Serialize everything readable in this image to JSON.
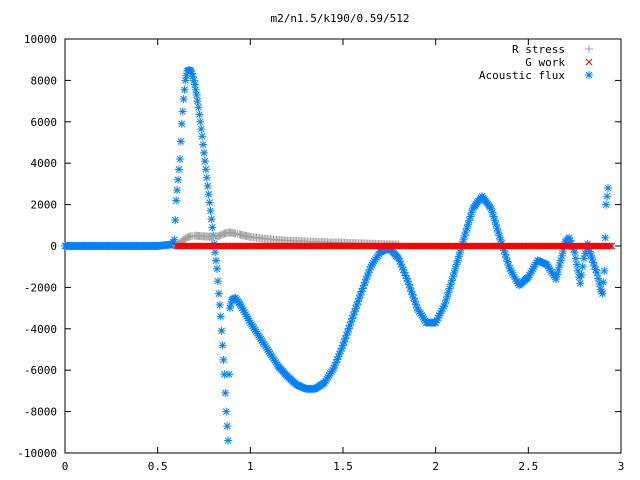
{
  "chart_data": {
    "type": "scatter",
    "title": "m2/n1.5/k190/0.59/512",
    "xlabel": "",
    "ylabel": "",
    "xlim": [
      0,
      3
    ],
    "ylim": [
      -10000,
      10000
    ],
    "x_ticks": [
      {
        "value": 0,
        "label": "0"
      },
      {
        "value": 0.5,
        "label": "0.5"
      },
      {
        "value": 1,
        "label": "1"
      },
      {
        "value": 1.5,
        "label": "1.5"
      },
      {
        "value": 2,
        "label": "2"
      },
      {
        "value": 2.5,
        "label": "2.5"
      },
      {
        "value": 3,
        "label": "3"
      }
    ],
    "y_ticks": [
      {
        "value": 10000,
        "label": "10000"
      },
      {
        "value": 8000,
        "label": "8000"
      },
      {
        "value": 6000,
        "label": "6000"
      },
      {
        "value": 4000,
        "label": "4000"
      },
      {
        "value": 2000,
        "label": "2000"
      },
      {
        "value": 0,
        "label": "0"
      },
      {
        "value": -2000,
        "label": "-2000"
      },
      {
        "value": -4000,
        "label": "-4000"
      },
      {
        "value": -6000,
        "label": "-6000"
      },
      {
        "value": -8000,
        "label": "-8000"
      },
      {
        "value": -10000,
        "label": "-10000"
      }
    ],
    "grid": false,
    "legend_position": "top-right",
    "series": [
      {
        "name": "R stress",
        "marker": "plus",
        "color": "#a0a0a0",
        "points": [
          [
            0.6,
            10
          ],
          [
            0.62,
            150
          ],
          [
            0.64,
            300
          ],
          [
            0.66,
            420
          ],
          [
            0.68,
            480
          ],
          [
            0.7,
            500
          ],
          [
            0.72,
            490
          ],
          [
            0.74,
            470
          ],
          [
            0.76,
            460
          ],
          [
            0.78,
            450
          ],
          [
            0.8,
            440
          ],
          [
            0.82,
            460
          ],
          [
            0.84,
            520
          ],
          [
            0.86,
            600
          ],
          [
            0.88,
            650
          ],
          [
            0.9,
            640
          ],
          [
            0.92,
            600
          ],
          [
            0.94,
            560
          ],
          [
            0.96,
            520
          ],
          [
            0.98,
            480
          ],
          [
            1.0,
            440
          ],
          [
            1.05,
            380
          ],
          [
            1.1,
            330
          ],
          [
            1.15,
            290
          ],
          [
            1.2,
            260
          ],
          [
            1.25,
            240
          ],
          [
            1.3,
            220
          ],
          [
            1.35,
            200
          ],
          [
            1.4,
            185
          ],
          [
            1.45,
            170
          ],
          [
            1.5,
            155
          ],
          [
            1.55,
            140
          ],
          [
            1.6,
            125
          ],
          [
            1.65,
            110
          ],
          [
            1.7,
            95
          ],
          [
            1.75,
            80
          ],
          [
            1.8,
            65
          ]
        ]
      },
      {
        "name": "G work",
        "marker": "cross",
        "color": "#ff0000",
        "points": [
          [
            0.6,
            0
          ],
          [
            0.7,
            0
          ],
          [
            0.8,
            0
          ],
          [
            0.9,
            0
          ],
          [
            1.0,
            0
          ],
          [
            1.1,
            0
          ],
          [
            1.2,
            0
          ],
          [
            1.3,
            0
          ],
          [
            1.4,
            0
          ],
          [
            1.5,
            0
          ],
          [
            1.6,
            0
          ],
          [
            1.7,
            0
          ],
          [
            1.8,
            0
          ],
          [
            1.9,
            0
          ],
          [
            2.0,
            0
          ],
          [
            2.1,
            0
          ],
          [
            2.2,
            0
          ],
          [
            2.3,
            0
          ],
          [
            2.4,
            0
          ],
          [
            2.5,
            0
          ],
          [
            2.6,
            0
          ],
          [
            2.7,
            0
          ],
          [
            2.8,
            0
          ],
          [
            2.9,
            0
          ],
          [
            2.95,
            0
          ]
        ]
      },
      {
        "name": "Acoustic flux",
        "marker": "star",
        "color": "#0080ff",
        "points": [
          [
            0.0,
            0
          ],
          [
            0.1,
            0
          ],
          [
            0.2,
            0
          ],
          [
            0.3,
            0
          ],
          [
            0.4,
            0
          ],
          [
            0.5,
            0
          ],
          [
            0.58,
            80
          ],
          [
            0.59,
            300
          ],
          [
            0.6,
            2200
          ],
          [
            0.61,
            3200
          ],
          [
            0.62,
            4200
          ],
          [
            0.63,
            5900
          ],
          [
            0.64,
            7100
          ],
          [
            0.65,
            8000
          ],
          [
            0.66,
            8450
          ],
          [
            0.67,
            8500
          ],
          [
            0.68,
            8450
          ],
          [
            0.69,
            8200
          ],
          [
            0.7,
            7800
          ],
          [
            0.71,
            7300
          ],
          [
            0.72,
            6700
          ],
          [
            0.73,
            6000
          ],
          [
            0.74,
            5300
          ],
          [
            0.75,
            4500
          ],
          [
            0.76,
            3700
          ],
          [
            0.77,
            2900
          ],
          [
            0.78,
            2100
          ],
          [
            0.79,
            1300
          ],
          [
            0.8,
            500
          ],
          [
            0.81,
            -300
          ],
          [
            0.82,
            -1100
          ],
          [
            0.83,
            -2300
          ],
          [
            0.84,
            -3400
          ],
          [
            0.85,
            -4800
          ],
          [
            0.86,
            -6200
          ],
          [
            0.87,
            -8000
          ],
          [
            0.88,
            -9400
          ],
          [
            0.89,
            -3000
          ],
          [
            0.9,
            -2600
          ],
          [
            0.92,
            -2500
          ],
          [
            0.95,
            -2900
          ],
          [
            1.0,
            -3700
          ],
          [
            1.05,
            -4400
          ],
          [
            1.1,
            -5100
          ],
          [
            1.15,
            -5800
          ],
          [
            1.2,
            -6300
          ],
          [
            1.25,
            -6700
          ],
          [
            1.3,
            -6900
          ],
          [
            1.35,
            -6900
          ],
          [
            1.4,
            -6600
          ],
          [
            1.45,
            -5900
          ],
          [
            1.5,
            -4800
          ],
          [
            1.55,
            -3500
          ],
          [
            1.6,
            -2200
          ],
          [
            1.65,
            -1000
          ],
          [
            1.7,
            -300
          ],
          [
            1.75,
            -100
          ],
          [
            1.8,
            -600
          ],
          [
            1.85,
            -1700
          ],
          [
            1.9,
            -3000
          ],
          [
            1.95,
            -3700
          ],
          [
            2.0,
            -3700
          ],
          [
            2.05,
            -2800
          ],
          [
            2.1,
            -1300
          ],
          [
            2.15,
            300
          ],
          [
            2.2,
            1800
          ],
          [
            2.25,
            2400
          ],
          [
            2.3,
            1800
          ],
          [
            2.35,
            300
          ],
          [
            2.4,
            -1100
          ],
          [
            2.45,
            -1900
          ],
          [
            2.5,
            -1500
          ],
          [
            2.55,
            -700
          ],
          [
            2.6,
            -900
          ],
          [
            2.65,
            -1600
          ],
          [
            2.7,
            200
          ],
          [
            2.72,
            400
          ],
          [
            2.75,
            -300
          ],
          [
            2.78,
            -1800
          ],
          [
            2.8,
            -600
          ],
          [
            2.82,
            100
          ],
          [
            2.85,
            -800
          ],
          [
            2.87,
            -1300
          ],
          [
            2.89,
            -2100
          ],
          [
            2.9,
            -2300
          ],
          [
            2.91,
            -1200
          ],
          [
            2.92,
            2000
          ],
          [
            2.93,
            2800
          ]
        ]
      }
    ]
  }
}
